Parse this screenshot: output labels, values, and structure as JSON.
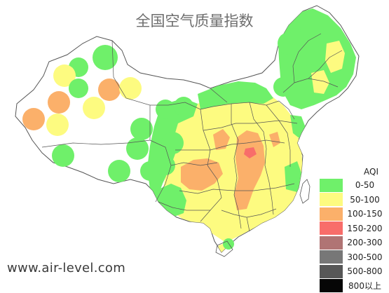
{
  "title": "全国空气质量指数",
  "watermark": "www.air-level.com",
  "legend": {
    "title": "AQI",
    "items": [
      {
        "label": "0-50",
        "color": "#6ff06a"
      },
      {
        "label": "50-100",
        "color": "#fdfb80"
      },
      {
        "label": "100-150",
        "color": "#fbb06a"
      },
      {
        "label": "150-200",
        "color": "#f86d6a"
      },
      {
        "label": "200-300",
        "color": "#b07474"
      },
      {
        "label": "300-500",
        "color": "#777777"
      },
      {
        "label": "500-800",
        "color": "#575757"
      },
      {
        "label": "800以上",
        "color": "#060606"
      }
    ]
  },
  "colors": {
    "good": "#6ff06a",
    "moderate": "#fdfb80",
    "light": "#fbb06a",
    "medium": "#f86d6a",
    "heavy": "#b07474",
    "land": "#ffffff",
    "boundary": "#555555"
  }
}
